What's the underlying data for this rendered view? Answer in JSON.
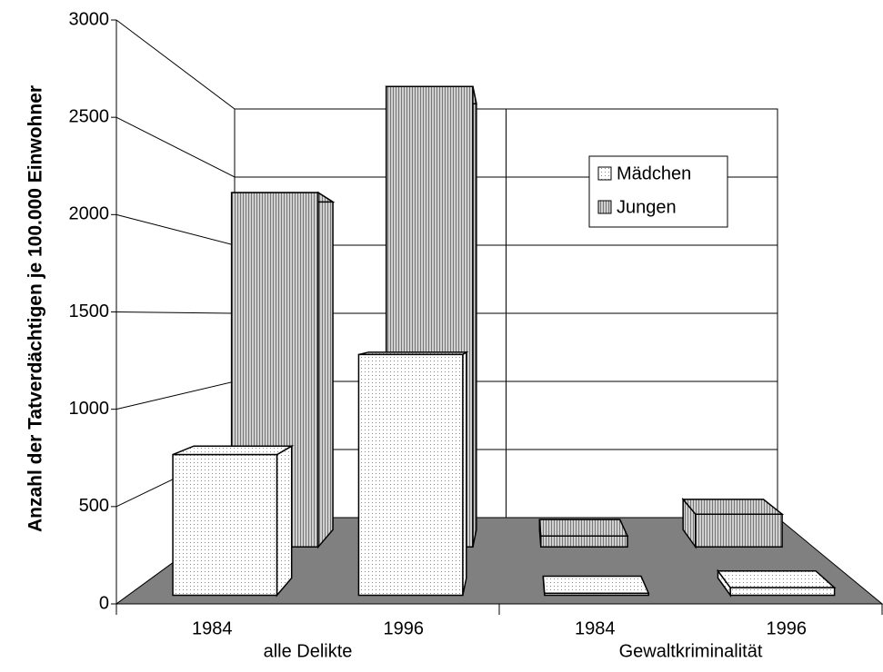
{
  "chart_data": {
    "type": "bar3d",
    "y_label": "Anzahl der Tatverdächtigen je 100.000 Einwohner",
    "categories": [
      "1984",
      "1996",
      "1984",
      "1996"
    ],
    "groups": [
      "alle Delikte",
      "Gewaltkriminalität"
    ],
    "series": [
      {
        "name": "Mädchen",
        "color": "#ffffff",
        "values": [
          745,
          1275,
          10,
          40
        ]
      },
      {
        "name": "Jungen",
        "color": "#b8b8b8",
        "values": [
          2270,
          2950,
          70,
          210
        ]
      }
    ],
    "ylim": [
      0,
      3000
    ],
    "yticks": [
      0,
      500,
      1000,
      1500,
      2000,
      2500,
      3000
    ],
    "grid": true
  }
}
